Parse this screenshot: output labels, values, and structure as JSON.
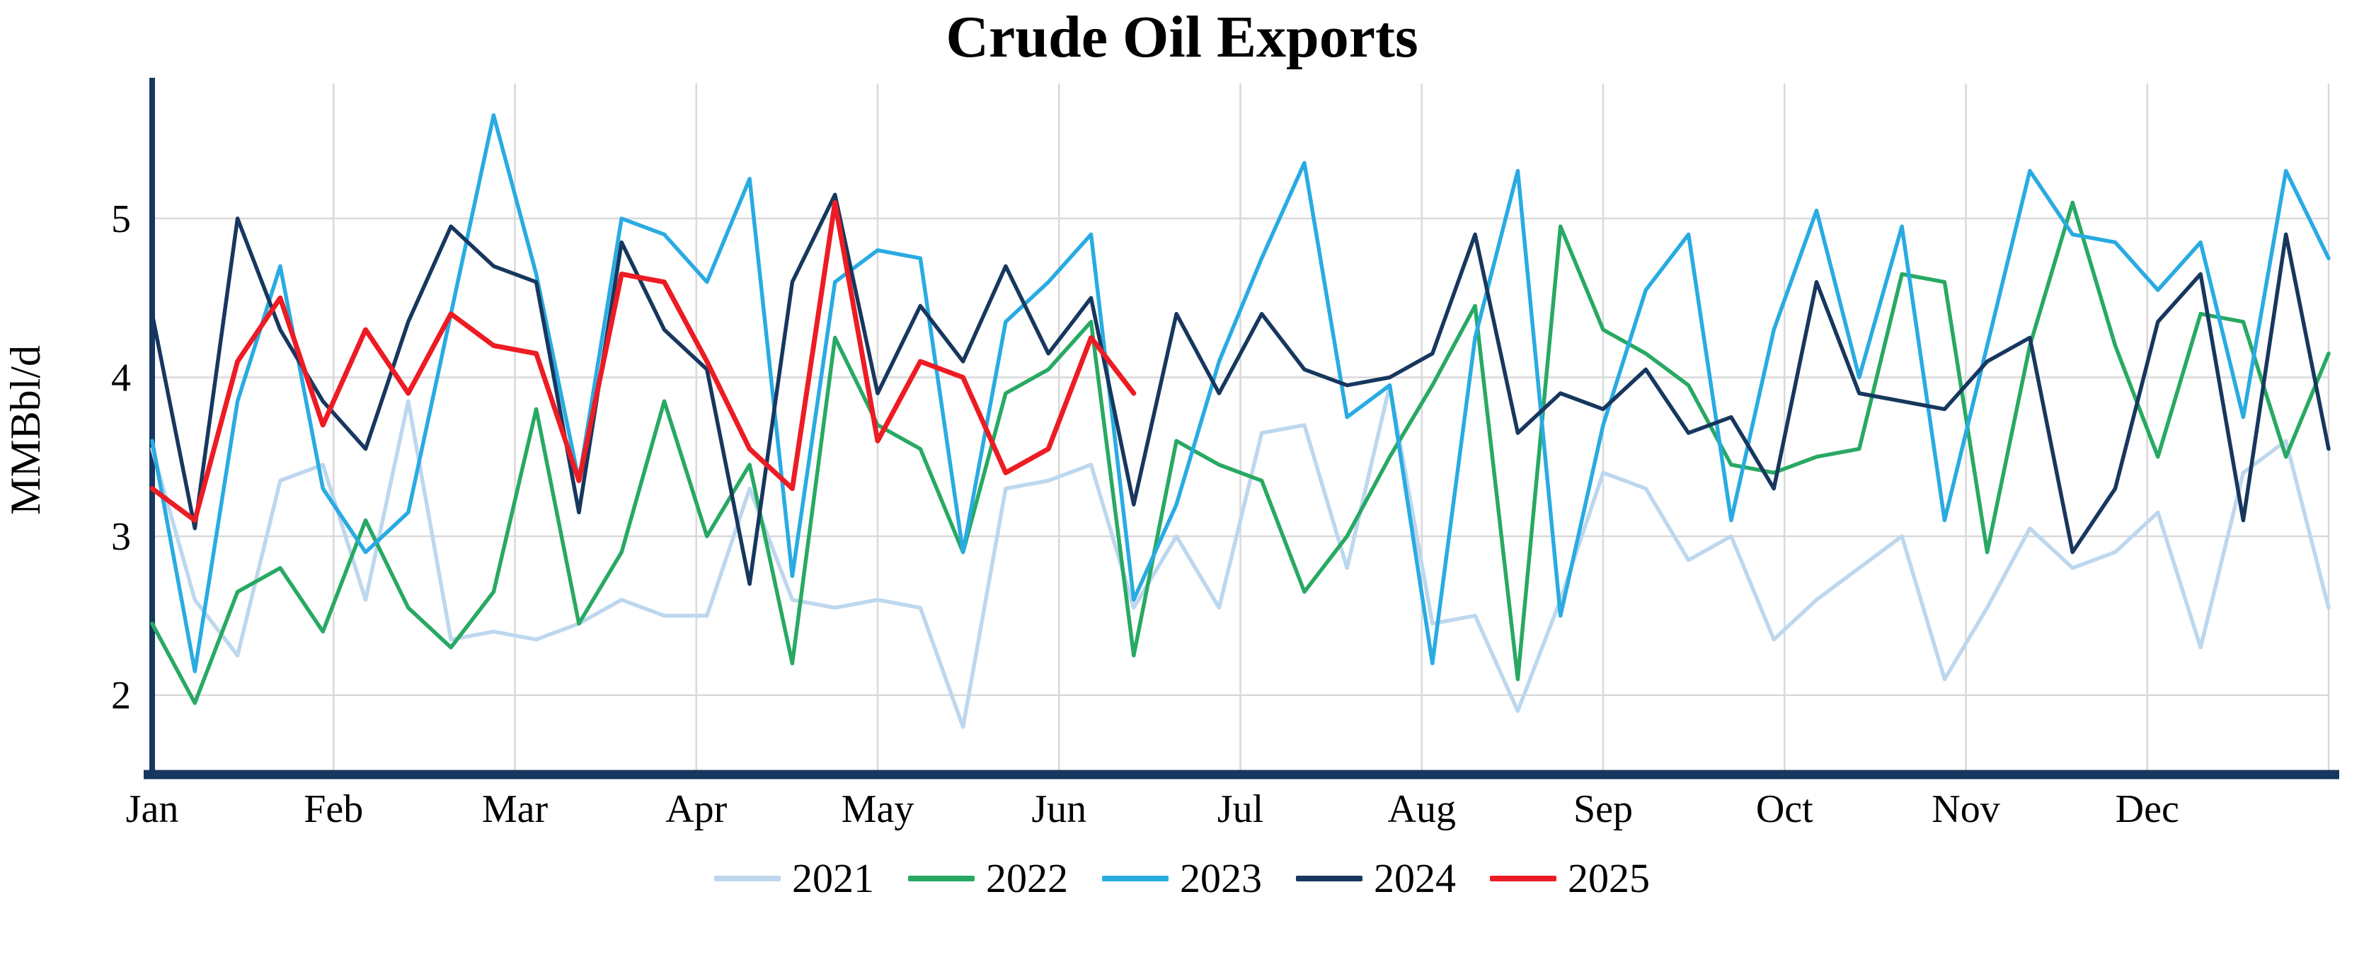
{
  "chart_data": {
    "type": "line",
    "title": "Crude Oil Exports",
    "ylabel": "MMBbl/d",
    "x_unit": "week",
    "points_per_year": 52,
    "x_tick_labels": [
      "Jan",
      "Feb",
      "Mar",
      "Apr",
      "May",
      "Jun",
      "Jul",
      "Aug",
      "Sep",
      "Oct",
      "Nov",
      "Dec"
    ],
    "y_ticks": [
      2,
      3,
      4,
      5
    ],
    "ylim": [
      1.5,
      5.85
    ],
    "grid": true,
    "legend_position": "bottom",
    "axis_color": "#17375e",
    "grid_color": "#d9d9d9",
    "series": [
      {
        "name": "2021",
        "color": "#bdd7ee",
        "values": [
          3.55,
          2.6,
          2.25,
          3.35,
          3.45,
          2.6,
          3.85,
          2.35,
          2.4,
          2.35,
          2.45,
          2.6,
          2.5,
          2.5,
          3.3,
          2.6,
          2.55,
          2.6,
          2.55,
          1.8,
          3.3,
          3.35,
          3.45,
          2.55,
          3.0,
          2.55,
          3.65,
          3.7,
          2.8,
          3.95,
          2.45,
          2.5,
          1.9,
          2.6,
          3.4,
          3.3,
          2.85,
          3.0,
          2.35,
          2.6,
          2.8,
          3.0,
          2.1,
          2.55,
          3.05,
          2.8,
          2.9,
          3.15,
          2.3,
          3.4,
          3.6,
          2.55
        ]
      },
      {
        "name": "2022",
        "color": "#28a963",
        "values": [
          2.45,
          1.95,
          2.65,
          2.8,
          2.4,
          3.1,
          2.55,
          2.3,
          2.65,
          3.8,
          2.45,
          2.9,
          3.85,
          3.0,
          3.45,
          2.2,
          4.25,
          3.7,
          3.55,
          2.9,
          3.9,
          4.05,
          4.35,
          2.25,
          3.6,
          3.45,
          3.35,
          2.65,
          3.0,
          3.5,
          3.95,
          4.45,
          2.1,
          4.95,
          4.3,
          4.15,
          3.95,
          3.45,
          3.4,
          3.5,
          3.55,
          4.65,
          4.6,
          2.9,
          4.2,
          5.1,
          4.2,
          3.5,
          4.4,
          4.35,
          3.5,
          4.15
        ]
      },
      {
        "name": "2023",
        "color": "#29abe2",
        "values": [
          3.6,
          2.15,
          3.85,
          4.7,
          3.3,
          2.9,
          3.15,
          4.4,
          5.65,
          4.65,
          3.35,
          5.0,
          4.9,
          4.6,
          5.25,
          2.75,
          4.6,
          4.8,
          4.75,
          2.9,
          4.35,
          4.6,
          4.9,
          2.6,
          3.2,
          4.1,
          4.75,
          5.35,
          3.75,
          3.95,
          2.2,
          4.25,
          5.3,
          2.5,
          3.7,
          4.55,
          4.9,
          3.1,
          4.3,
          5.05,
          4.0,
          4.95,
          3.1,
          4.2,
          5.3,
          4.9,
          4.85,
          4.55,
          4.85,
          3.75,
          5.3,
          4.75
        ]
      },
      {
        "name": "2024",
        "color": "#17375e",
        "values": [
          4.4,
          3.05,
          5.0,
          4.3,
          3.85,
          3.55,
          4.35,
          4.95,
          4.7,
          4.6,
          3.15,
          4.85,
          4.3,
          4.05,
          2.7,
          4.6,
          5.15,
          3.9,
          4.45,
          4.1,
          4.7,
          4.15,
          4.5,
          3.2,
          4.4,
          3.9,
          4.4,
          4.05,
          3.95,
          4.0,
          4.15,
          4.9,
          3.65,
          3.9,
          3.8,
          4.05,
          3.65,
          3.75,
          3.3,
          4.6,
          3.9,
          3.85,
          3.8,
          4.1,
          4.25,
          2.9,
          3.3,
          4.35,
          4.65,
          3.1,
          4.9,
          3.55
        ]
      },
      {
        "name": "2025",
        "color": "#ed1c24",
        "values": [
          3.3,
          3.1,
          4.1,
          4.5,
          3.7,
          4.3,
          3.9,
          4.4,
          4.2,
          4.15,
          3.35,
          4.65,
          4.6,
          4.1,
          3.55,
          3.3,
          5.1,
          3.6,
          4.1,
          4.0,
          3.4,
          3.55,
          4.25,
          3.9
        ]
      }
    ]
  }
}
